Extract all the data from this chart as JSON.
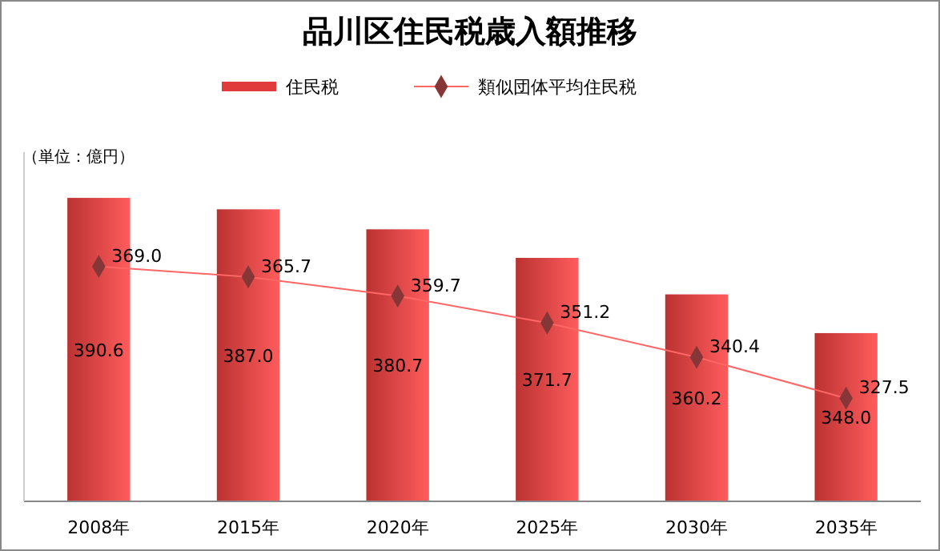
{
  "chart_data": {
    "type": "bar",
    "title": "品川区住民税歳入額推移",
    "annotations": [
      "（単位：億円）"
    ],
    "categories": [
      "2008年",
      "2015年",
      "2020年",
      "2025年",
      "2030年",
      "2035年"
    ],
    "series": [
      {
        "name": "住民税",
        "color": "#e03c3c",
        "values": [
          390.6,
          387.0,
          380.7,
          371.7,
          360.2,
          348.0
        ],
        "value_labels": [
          "390.6",
          "387.0",
          "380.7",
          "371.7",
          "360.2",
          "348.0"
        ]
      },
      {
        "name": "類似団体平均住民税",
        "type": "line",
        "color": "#ff6666",
        "values": [
          369.0,
          365.7,
          359.7,
          351.2,
          340.4,
          327.5
        ],
        "value_labels": [
          "369.0",
          "365.7",
          "359.7",
          "351.2",
          "340.4",
          "327.5"
        ]
      }
    ],
    "ylim": [
      295,
      405
    ],
    "tick_labels": "x",
    "legend": "top",
    "marker": "diamond",
    "grid": false
  }
}
